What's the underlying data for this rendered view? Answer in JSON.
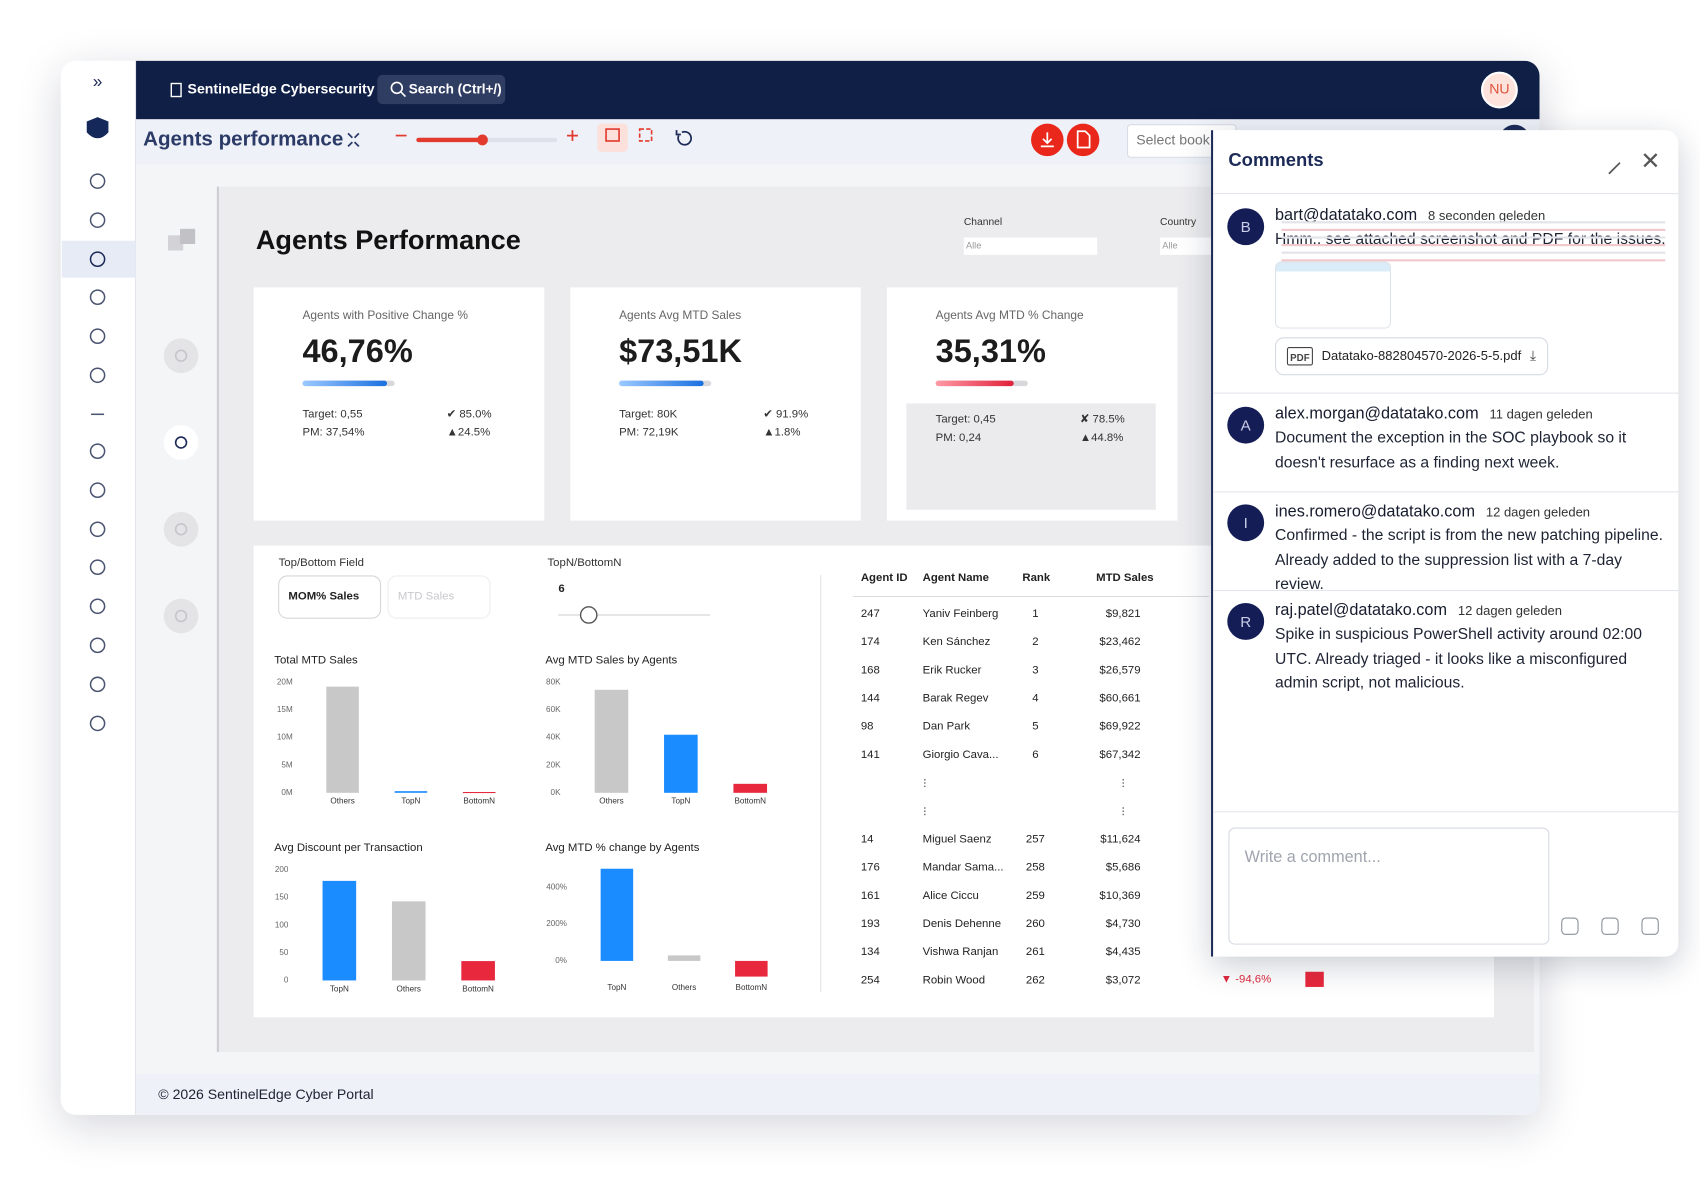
{
  "app": {
    "brand": "SentinelEdge Cybersecurity",
    "search": "Search (Ctrl+/)",
    "user_initials": "NU",
    "footer": "© 2026 SentinelEdge Cyber Portal"
  },
  "toolbar": {
    "title": "Agents performance",
    "book_select": "Select book"
  },
  "report": {
    "title": "Agents Performance",
    "filters": [
      {
        "label": "Channel",
        "value": "Alle"
      },
      {
        "label": "Country",
        "value": "Alle"
      }
    ],
    "kpis": [
      {
        "label": "Agents with Positive Change %",
        "value": "46,76%",
        "target": "Target: 0,55",
        "target_status": "✔ 85.0%",
        "pm": "PM: 37,54%",
        "pm_status": "▲24.5%"
      },
      {
        "label": "Agents Avg MTD Sales",
        "value": "$73,51K",
        "target": "Target: 80K",
        "target_status": "✔ 91.9%",
        "pm": "PM: 72,19K",
        "pm_status": "▲1.8%"
      },
      {
        "label": "Agents Avg MTD % Change",
        "value": "35,31%",
        "target": "Target: 0,45",
        "target_status": "✘ 78.5%",
        "pm": "PM: 0,24",
        "pm_status": "▲44.8%"
      }
    ],
    "top_bottom_field": {
      "label": "Top/Bottom Field",
      "options": [
        "MOM% Sales",
        "MTD Sales"
      ]
    },
    "top_n": {
      "label": "TopN/BottomN",
      "value": 6
    },
    "charts": [
      {
        "type": "bar",
        "title": "Total MTD Sales",
        "categories": [
          "Others",
          "TopN",
          "BottomN"
        ],
        "values": [
          19200000,
          300000,
          150000
        ],
        "colors": [
          "#c8c8c8",
          "#1a8cff",
          "#e8283c"
        ],
        "ylim": [
          0,
          20000000
        ],
        "yticks": [
          {
            "value": 20000000,
            "label": "20M"
          },
          {
            "value": 15000000,
            "label": "15M"
          },
          {
            "value": 10000000,
            "label": "10M"
          },
          {
            "value": 5000000,
            "label": "5M"
          },
          {
            "value": 0,
            "label": "0M"
          }
        ]
      },
      {
        "type": "bar",
        "title": "Avg MTD Sales by Agents",
        "categories": [
          "Others",
          "TopN",
          "BottomN"
        ],
        "values": [
          74500,
          42000,
          6500
        ],
        "colors": [
          "#c8c8c8",
          "#1a8cff",
          "#e8283c"
        ],
        "ylim": [
          0,
          80000
        ],
        "yticks": [
          {
            "value": 80000,
            "label": "80K"
          },
          {
            "value": 60000,
            "label": "60K"
          },
          {
            "value": 40000,
            "label": "40K"
          },
          {
            "value": 20000,
            "label": "20K"
          },
          {
            "value": 0,
            "label": "0K"
          }
        ]
      },
      {
        "type": "bar",
        "title": "Avg Discount per Transaction",
        "categories": [
          "TopN",
          "Others",
          "BottomN"
        ],
        "values": [
          180,
          143,
          35
        ],
        "colors": [
          "#1a8cff",
          "#c8c8c8",
          "#e8283c"
        ],
        "ylim": [
          0,
          200
        ],
        "yticks": [
          200,
          150,
          100,
          50,
          0
        ]
      },
      {
        "type": "bar",
        "title": "Avg MTD % change by Agents",
        "categories": [
          "TopN",
          "Others",
          "BottomN"
        ],
        "values": [
          500,
          30,
          -85
        ],
        "colors": [
          "#1a8cff",
          "#c8c8c8",
          "#e8283c"
        ],
        "ylim": [
          -100,
          520
        ],
        "yticks": [
          {
            "value": 400,
            "label": "400%"
          },
          {
            "value": 200,
            "label": "200%"
          },
          {
            "value": 0,
            "label": "0%"
          }
        ]
      }
    ],
    "table": {
      "columns": [
        "Agent ID",
        "Agent Name",
        "Rank",
        "MTD Sales"
      ],
      "top_rows": [
        [
          247,
          "Yaniv Feinberg",
          1,
          "$9,821"
        ],
        [
          174,
          "Ken Sánchez",
          2,
          "$23,462"
        ],
        [
          168,
          "Erik Rucker",
          3,
          "$26,579"
        ],
        [
          144,
          "Barak Regev",
          4,
          "$60,661"
        ],
        [
          98,
          "Dan Park",
          5,
          "$69,922"
        ],
        [
          141,
          "Giorgio Cava...",
          6,
          "$67,342"
        ]
      ],
      "bottom_rows": [
        [
          14,
          "Miguel Saenz",
          257,
          "$11,624"
        ],
        [
          176,
          "Mandar Sama...",
          258,
          "$5,686"
        ],
        [
          161,
          "Alice Ciccu",
          259,
          "$10,369"
        ],
        [
          193,
          "Denis Dehenne",
          260,
          "$4,730"
        ],
        [
          134,
          "Vishwa Ranjan",
          261,
          "$4,435"
        ],
        [
          254,
          "Robin Wood",
          262,
          "$3,072"
        ]
      ],
      "last_row_change": "▼ -94,6%"
    }
  },
  "comments": {
    "title": "Comments",
    "placeholder": "Write a comment...",
    "items": [
      {
        "initial": "B",
        "author": "bart@datatako.com",
        "time": "8 seconden geleden",
        "text": "Hmm.. see attached screenshot and PDF for the issues.",
        "attachment_type": "PDF",
        "attachment": "Datatako-882804570-2026-5-5.pdf"
      },
      {
        "initial": "A",
        "author": "alex.morgan@datatako.com",
        "time": "11 dagen geleden",
        "text": "Document the exception in the SOC playbook so it doesn't resurface as a finding next week."
      },
      {
        "initial": "I",
        "author": "ines.romero@datatako.com",
        "time": "12 dagen geleden",
        "text": "Confirmed - the script is from the new patching pipeline. Already added to the suppression list with a 7-day review."
      },
      {
        "initial": "R",
        "author": "raj.patel@datatako.com",
        "time": "12 dagen geleden",
        "text": "Spike in suspicious PowerShell activity around 02:00 UTC. Already triaged - it looks like a misconfigured admin script, not malicious."
      }
    ]
  }
}
